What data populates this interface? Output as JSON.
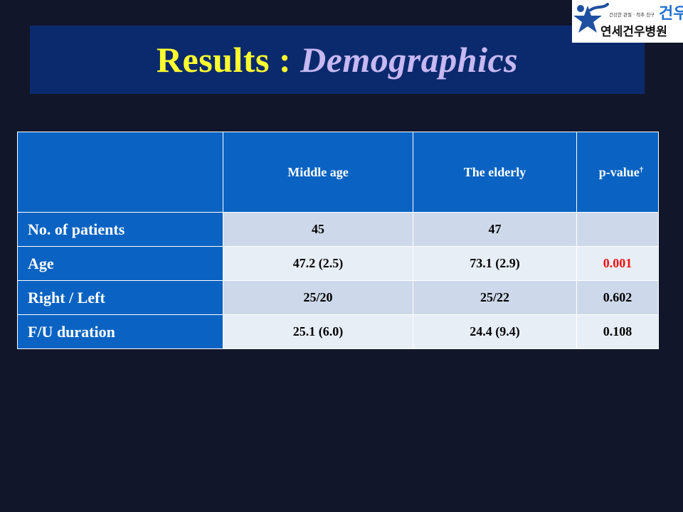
{
  "title": {
    "main": "Results :",
    "sub": "Demographics"
  },
  "logo": {
    "text_main": "연세건우병원",
    "text_side": "건우",
    "text_small": "건강한 관절 · 척추 친구"
  },
  "table": {
    "headers": [
      "",
      "Middle age",
      "The elderly",
      "p-value"
    ],
    "header_dagger": "†",
    "rows": [
      {
        "label": "No. of patients",
        "middle": "45",
        "elderly": "47",
        "p": ""
      },
      {
        "label": "Age",
        "middle": "47.2 (2.5)",
        "elderly": "73.1 (2.9)",
        "p": "0.001"
      },
      {
        "label": "Right / Left",
        "middle": "25/20",
        "elderly": "25/22",
        "p": "0.602"
      },
      {
        "label": "F/U duration",
        "middle": "25.1 (6.0)",
        "elderly": "24.4 (9.4)",
        "p": "0.108"
      }
    ]
  },
  "colors": {
    "background": "#11162a",
    "title_bar": "#0b2a6e",
    "title_main": "#ffff2e",
    "title_sub": "#c7b8f2",
    "table_header": "#0a63c2",
    "row_odd": "#cdd9ea",
    "row_even": "#e8eef6",
    "significant": "#ee1111"
  }
}
